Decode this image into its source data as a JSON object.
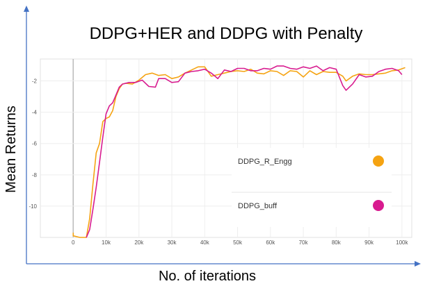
{
  "chart_data": {
    "type": "line",
    "title": "DDPG+HER and DDPG with Penalty",
    "xlabel": "No. of iterations",
    "ylabel": "Mean Returns",
    "xlim": [
      -10000,
      103000
    ],
    "ylim": [
      -12,
      -0.6
    ],
    "x_ticks": [
      "0",
      "10k",
      "20k",
      "30k",
      "40k",
      "50k",
      "60k",
      "70k",
      "80k",
      "90k",
      "100k"
    ],
    "y_ticks": [
      "-2",
      "-4",
      "-6",
      "-8",
      "-10"
    ],
    "grid": true,
    "legend_position": "bottom-right",
    "series": [
      {
        "name": "DDPG_R_Engg",
        "color": "#f5a312",
        "points": [
          [
            0,
            -11.7
          ],
          [
            0,
            -11.9
          ],
          [
            2000,
            -12.4
          ],
          [
            4000,
            -12.0
          ],
          [
            5000,
            -10.8
          ],
          [
            6000,
            -8.6
          ],
          [
            7000,
            -6.6
          ],
          [
            8000,
            -6.0
          ],
          [
            9000,
            -4.6
          ],
          [
            10000,
            -4.4
          ],
          [
            11000,
            -4.3
          ],
          [
            12000,
            -3.9
          ],
          [
            13000,
            -3.0
          ],
          [
            14000,
            -2.5
          ],
          [
            15000,
            -2.2
          ],
          [
            16000,
            -2.15
          ],
          [
            18000,
            -2.2
          ],
          [
            20000,
            -1.95
          ],
          [
            22000,
            -1.6
          ],
          [
            24000,
            -1.5
          ],
          [
            26000,
            -1.65
          ],
          [
            28000,
            -1.6
          ],
          [
            30000,
            -1.85
          ],
          [
            32000,
            -1.75
          ],
          [
            34000,
            -1.5
          ],
          [
            36000,
            -1.3
          ],
          [
            38000,
            -1.1
          ],
          [
            40000,
            -1.1
          ],
          [
            42000,
            -1.7
          ],
          [
            44000,
            -1.6
          ],
          [
            46000,
            -1.5
          ],
          [
            48000,
            -1.4
          ],
          [
            50000,
            -1.35
          ],
          [
            52000,
            -1.4
          ],
          [
            54000,
            -1.25
          ],
          [
            56000,
            -1.5
          ],
          [
            58000,
            -1.55
          ],
          [
            60000,
            -1.35
          ],
          [
            62000,
            -1.4
          ],
          [
            64000,
            -1.65
          ],
          [
            66000,
            -1.35
          ],
          [
            68000,
            -1.4
          ],
          [
            70000,
            -1.75
          ],
          [
            72000,
            -1.35
          ],
          [
            74000,
            -1.6
          ],
          [
            76000,
            -1.4
          ],
          [
            78000,
            -1.45
          ],
          [
            80000,
            -1.45
          ],
          [
            82000,
            -1.7
          ],
          [
            83000,
            -2.0
          ],
          [
            85000,
            -1.7
          ],
          [
            87000,
            -1.55
          ],
          [
            89000,
            -1.6
          ],
          [
            91000,
            -1.6
          ],
          [
            93000,
            -1.55
          ],
          [
            95000,
            -1.5
          ],
          [
            97000,
            -1.35
          ],
          [
            99000,
            -1.3
          ],
          [
            101000,
            -1.15
          ]
        ]
      },
      {
        "name": "DDPG_buff",
        "color": "#d81b8f",
        "points": [
          [
            4000,
            -12.0
          ],
          [
            5000,
            -11.5
          ],
          [
            6000,
            -10.2
          ],
          [
            7000,
            -8.8
          ],
          [
            8000,
            -7.2
          ],
          [
            9000,
            -5.6
          ],
          [
            10000,
            -4.1
          ],
          [
            11000,
            -3.6
          ],
          [
            12000,
            -3.4
          ],
          [
            13000,
            -2.9
          ],
          [
            14000,
            -2.4
          ],
          [
            15000,
            -2.2
          ],
          [
            17000,
            -2.1
          ],
          [
            19000,
            -2.1
          ],
          [
            21000,
            -1.95
          ],
          [
            23000,
            -2.35
          ],
          [
            25000,
            -2.4
          ],
          [
            26000,
            -1.85
          ],
          [
            28000,
            -1.85
          ],
          [
            30000,
            -2.1
          ],
          [
            32000,
            -2.05
          ],
          [
            34000,
            -1.5
          ],
          [
            36000,
            -1.4
          ],
          [
            38000,
            -1.35
          ],
          [
            40000,
            -1.25
          ],
          [
            42000,
            -1.5
          ],
          [
            44000,
            -1.85
          ],
          [
            46000,
            -1.3
          ],
          [
            48000,
            -1.4
          ],
          [
            50000,
            -1.2
          ],
          [
            52000,
            -1.2
          ],
          [
            54000,
            -1.35
          ],
          [
            56000,
            -1.35
          ],
          [
            58000,
            -1.2
          ],
          [
            60000,
            -1.25
          ],
          [
            62000,
            -1.05
          ],
          [
            64000,
            -1.05
          ],
          [
            66000,
            -1.2
          ],
          [
            68000,
            -1.25
          ],
          [
            70000,
            -1.1
          ],
          [
            72000,
            -1.2
          ],
          [
            74000,
            -1.05
          ],
          [
            76000,
            -1.35
          ],
          [
            78000,
            -1.15
          ],
          [
            80000,
            -1.25
          ],
          [
            82000,
            -2.3
          ],
          [
            83000,
            -2.6
          ],
          [
            85000,
            -2.2
          ],
          [
            87000,
            -1.6
          ],
          [
            89000,
            -1.75
          ],
          [
            91000,
            -1.7
          ],
          [
            93000,
            -1.4
          ],
          [
            95000,
            -1.25
          ],
          [
            97000,
            -1.2
          ],
          [
            99000,
            -1.35
          ],
          [
            100000,
            -1.6
          ]
        ]
      }
    ]
  }
}
